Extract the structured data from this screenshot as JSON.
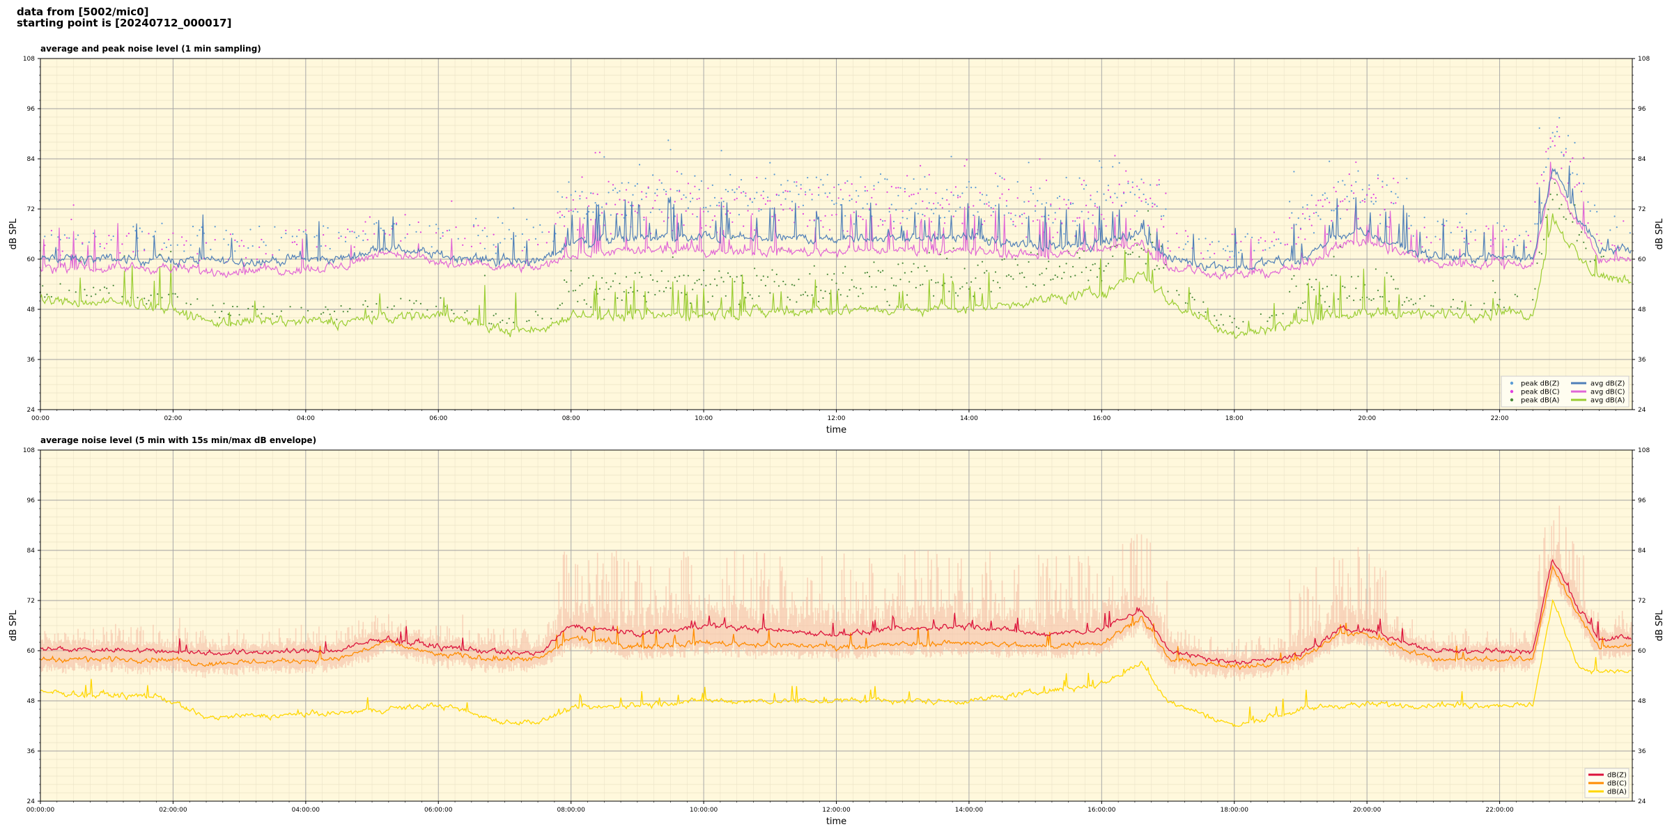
{
  "header": {
    "line1": "data from [5002/mic0]",
    "line2": "starting point is [20240712_000017]"
  },
  "colors": {
    "plot_bg": "#fff8dc",
    "avg_z": "#4f7fb8",
    "avg_c": "#e066d6",
    "avg_a": "#9acd32",
    "peak_z": "#5b9bd5",
    "peak_c": "#e040e0",
    "peak_a": "#4a8a3a",
    "env_z": "#dc143c",
    "env_c": "#ff8c00",
    "env_a": "#ffd700",
    "envelope_fill": "#f4b8a0"
  },
  "chart_data": [
    {
      "type": "line",
      "title": "average and peak noise level (1 min sampling)",
      "xlabel": "time",
      "ylabel": "dB SPL",
      "xlim_hours": [
        0,
        24
      ],
      "ylim": [
        24,
        108
      ],
      "yticks": [
        "24",
        "36",
        "48",
        "60",
        "72",
        "84",
        "96",
        "108"
      ],
      "xtick_labels": [
        "00:00",
        "02:00",
        "04:00",
        "06:00",
        "08:00",
        "10:00",
        "12:00",
        "14:00",
        "16:00",
        "18:00",
        "20:00",
        "22:00"
      ],
      "grid": true,
      "legend_position": "lower-right",
      "legend_entries": [
        "peak dB(Z)",
        "peak dB(C)",
        "peak dB(A)",
        "avg dB(Z)",
        "avg dB(C)",
        "avg dB(A)"
      ],
      "baseline_hours": [
        0,
        1.8,
        2.5,
        4.5,
        5.2,
        6,
        7,
        7.55,
        8,
        9,
        10,
        12,
        14,
        15,
        16,
        16.6,
        17,
        18,
        19,
        19.6,
        20,
        21,
        22,
        22.5,
        22.8,
        23.2,
        23.5,
        24
      ],
      "series": [
        {
          "name": "avg dB(Z)",
          "approx_values": [
            60,
            60,
            59.5,
            60,
            63,
            61,
            59.5,
            59.5,
            64,
            65,
            65,
            65,
            65,
            63,
            64,
            66,
            60,
            58,
            60,
            66,
            66,
            60.5,
            60.5,
            60.5,
            82,
            70,
            62,
            62
          ]
        },
        {
          "name": "avg dB(C)",
          "approx_values": [
            58,
            58,
            57,
            58,
            62,
            59,
            58,
            58,
            61,
            62,
            62,
            62,
            62,
            61,
            62,
            64,
            58,
            56,
            58,
            64,
            64,
            59,
            59,
            59,
            80,
            68,
            60,
            60
          ]
        },
        {
          "name": "avg dB(A)",
          "approx_values": [
            50,
            49,
            45,
            45,
            46,
            47,
            43,
            43,
            47,
            46,
            47,
            48,
            48,
            50,
            52,
            57,
            50,
            42,
            45,
            47,
            47,
            47,
            47,
            47,
            70,
            60,
            56,
            55
          ]
        },
        {
          "name": "peak dB(Z)",
          "approx_offset_above_avg": 6
        },
        {
          "name": "peak dB(C)",
          "approx_offset_above_avg": 7
        },
        {
          "name": "peak dB(A)",
          "approx_offset_above_avg": 3
        }
      ]
    },
    {
      "type": "line",
      "title": "average noise level (5 min with 15s min/max dB envelope)",
      "xlabel": "time",
      "ylabel": "dB SPL",
      "xlim_hours": [
        0,
        24
      ],
      "ylim": [
        24,
        108
      ],
      "yticks": [
        "24",
        "36",
        "48",
        "60",
        "72",
        "84",
        "96",
        "108"
      ],
      "xtick_labels": [
        "00:00:00",
        "02:00:00",
        "04:00:00",
        "06:00:00",
        "08:00:00",
        "10:00:00",
        "12:00:00",
        "14:00:00",
        "16:00:00",
        "18:00:00",
        "20:00:00",
        "22:00:00"
      ],
      "grid": true,
      "legend_position": "lower-right",
      "legend_entries": [
        "dB(Z)",
        "dB(C)",
        "dB(A)"
      ],
      "baseline_hours": [
        0,
        1.8,
        2.5,
        4.5,
        5.2,
        6,
        7,
        7.55,
        8,
        9,
        10,
        12,
        14,
        15,
        16,
        16.6,
        17,
        18,
        19,
        19.6,
        20,
        21,
        22,
        22.5,
        22.8,
        23.2,
        23.5,
        24
      ],
      "series": [
        {
          "name": "dB(Z)",
          "approx_values": [
            60.5,
            60,
            59.5,
            60,
            63,
            61,
            59.5,
            59.5,
            66,
            64,
            66,
            64,
            66,
            64,
            65,
            70,
            60,
            57,
            59,
            65,
            65,
            60,
            60,
            60,
            82,
            70,
            63,
            63
          ]
        },
        {
          "name": "dB(C)",
          "approx_values": [
            58,
            58,
            57,
            58,
            62,
            59,
            58,
            58,
            63,
            61,
            62,
            61,
            62,
            61,
            62,
            68,
            58,
            56,
            58,
            64,
            64,
            58,
            58,
            58,
            80,
            68,
            61,
            61
          ]
        },
        {
          "name": "dB(A)",
          "approx_values": [
            50,
            49,
            44,
            45,
            46,
            47,
            43,
            43,
            46,
            47,
            48,
            48,
            48,
            50,
            52,
            57,
            48,
            42,
            46,
            47,
            47,
            47,
            47,
            47,
            72,
            56,
            55,
            55
          ]
        }
      ]
    }
  ]
}
